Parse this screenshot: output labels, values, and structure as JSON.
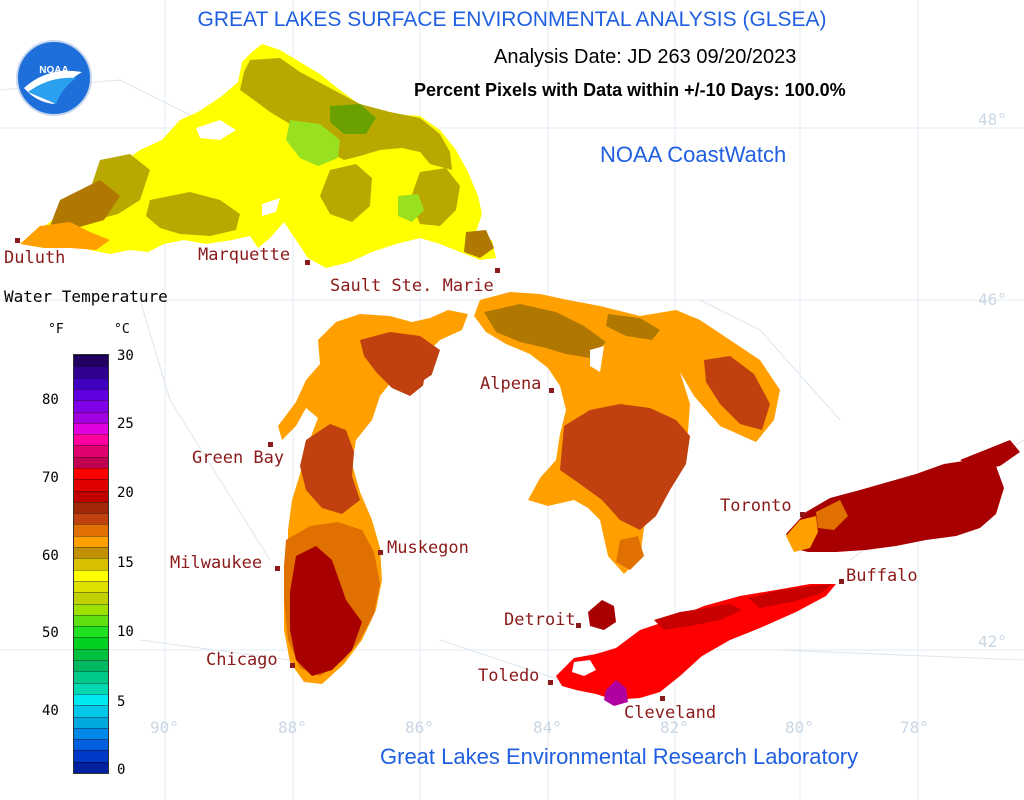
{
  "header": {
    "title": "GREAT LAKES SURFACE ENVIRONMENTAL ANALYSIS (GLSEA)",
    "analysis_date": "Analysis Date:  JD 263 09/20/2023",
    "percent_pixels": "Percent Pixels with Data within +/-10 Days: 100.0%",
    "coastwatch": "NOAA CoastWatch",
    "footer": "Great Lakes Environmental Research Laboratory"
  },
  "logo": {
    "text": "NOAA"
  },
  "legend": {
    "title": "Water Temperature",
    "unit_f": "°F",
    "unit_c": "°C",
    "f_ticks": [
      "80",
      "70",
      "60",
      "50",
      "40"
    ],
    "c_ticks": [
      "30",
      "25",
      "20",
      "15",
      "10",
      "5",
      "0"
    ],
    "colors_bottom_to_top": [
      "#0020a0",
      "#0038c8",
      "#0060e0",
      "#0088e8",
      "#00a8e0",
      "#00c8e8",
      "#00e8f0",
      "#00d8b0",
      "#00c888",
      "#00b860",
      "#00c040",
      "#00d020",
      "#20e020",
      "#60e010",
      "#a0e000",
      "#c0d000",
      "#e0e000",
      "#ffff00",
      "#d8c000",
      "#c09000",
      "#ffa000",
      "#e07000",
      "#c04010",
      "#a02808",
      "#c00000",
      "#e00000",
      "#ff0000",
      "#c00050",
      "#e00070",
      "#ff00a0",
      "#e000e0",
      "#a000e0",
      "#8000e8",
      "#6000e0",
      "#4000c0",
      "#300090",
      "#200060"
    ]
  },
  "cities": [
    {
      "name": "Duluth"
    },
    {
      "name": "Marquette"
    },
    {
      "name": "Sault Ste. Marie"
    },
    {
      "name": "Green Bay"
    },
    {
      "name": "Alpena"
    },
    {
      "name": "Milwaukee"
    },
    {
      "name": "Muskegon"
    },
    {
      "name": "Chicago"
    },
    {
      "name": "Toronto"
    },
    {
      "name": "Buffalo"
    },
    {
      "name": "Detroit"
    },
    {
      "name": "Toledo"
    },
    {
      "name": "Cleveland"
    }
  ],
  "graticule": {
    "lats": [
      "48°",
      "46°",
      "42°"
    ],
    "lons": [
      "90°",
      "88°",
      "86°",
      "84°",
      "82°",
      "80°",
      "78°"
    ]
  },
  "colors": {
    "title_blue": "#1f5fe0",
    "city_red": "#8b1a1a",
    "superior_yellow": "#ffff00",
    "superior_olive": "#b8a800",
    "michigan_darkred": "#a80000",
    "huron_orange": "#ffa000",
    "erie_red": "#ff0000",
    "ontario_darkred": "#a80000"
  }
}
